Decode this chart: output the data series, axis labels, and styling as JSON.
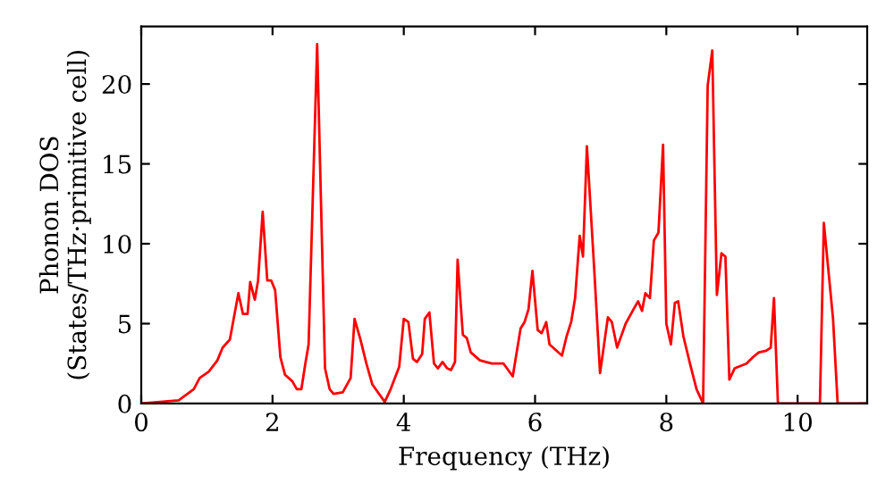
{
  "chart_data": {
    "type": "line",
    "xlabel": "Frequency (THz)",
    "ylabel": "Phonon DOS\n(States/THz·primitive cell)",
    "xlim": [
      0,
      11.06
    ],
    "ylim": [
      0,
      23.6
    ],
    "xticks": [
      0,
      2,
      4,
      6,
      8,
      10
    ],
    "yticks": [
      0,
      5,
      10,
      15,
      20
    ],
    "grid": false,
    "legend": false,
    "marker": "none",
    "line_style": "solid",
    "series": [
      {
        "color": "#ff0000",
        "x": [
          0,
          0.57,
          0.8,
          0.89,
          1.03,
          1.16,
          1.24,
          1.35,
          1.48,
          1.55,
          1.62,
          1.66,
          1.73,
          1.78,
          1.85,
          1.92,
          1.98,
          2.04,
          2.12,
          2.19,
          2.3,
          2.37,
          2.44,
          2.5,
          2.55,
          2.68,
          2.8,
          2.87,
          2.93,
          3.07,
          3.19,
          3.25,
          3.34,
          3.43,
          3.52,
          3.71,
          3.8,
          3.93,
          4.0,
          4.07,
          4.14,
          4.2,
          4.28,
          4.32,
          4.39,
          4.46,
          4.52,
          4.59,
          4.66,
          4.72,
          4.78,
          4.82,
          4.9,
          4.96,
          5.02,
          5.16,
          5.34,
          5.52,
          5.66,
          5.78,
          5.84,
          5.9,
          5.96,
          6.04,
          6.1,
          6.17,
          6.22,
          6.41,
          6.48,
          6.55,
          6.61,
          6.68,
          6.73,
          6.79,
          6.9,
          6.99,
          7.11,
          7.17,
          7.25,
          7.38,
          7.5,
          7.57,
          7.63,
          7.68,
          7.75,
          7.81,
          7.88,
          7.95,
          8.0,
          8.07,
          8.13,
          8.18,
          8.26,
          8.36,
          8.46,
          8.56,
          8.63,
          8.7,
          8.77,
          8.84,
          8.9,
          8.96,
          9.04,
          9.22,
          9.32,
          9.41,
          9.52,
          9.59,
          9.64,
          9.7,
          10.34,
          10.4,
          10.54,
          10.61,
          11.06
        ],
        "values": [
          0,
          0.2,
          0.9,
          1.6,
          2.0,
          2.7,
          3.5,
          4.0,
          6.9,
          5.6,
          5.6,
          7.6,
          6.5,
          7.7,
          12.0,
          7.7,
          7.7,
          7.1,
          2.9,
          1.8,
          1.4,
          0.9,
          0.9,
          2.5,
          3.7,
          22.5,
          2.2,
          0.9,
          0.6,
          0.7,
          1.6,
          5.3,
          4.0,
          2.5,
          1.2,
          0.1,
          0.9,
          2.3,
          5.3,
          5.1,
          2.8,
          2.6,
          3.1,
          5.3,
          5.7,
          2.5,
          2.2,
          2.6,
          2.2,
          2.1,
          2.6,
          9.0,
          4.3,
          4.1,
          3.2,
          2.7,
          2.5,
          2.5,
          1.7,
          4.7,
          5.1,
          5.9,
          8.3,
          4.6,
          4.4,
          5.1,
          3.7,
          3.0,
          4.2,
          5.1,
          6.6,
          10.5,
          9.2,
          16.1,
          8.5,
          1.9,
          5.4,
          5.1,
          3.5,
          5.0,
          5.9,
          6.4,
          5.8,
          6.9,
          6.6,
          10.2,
          10.7,
          16.2,
          5.0,
          3.7,
          6.3,
          6.4,
          4.2,
          2.5,
          0.9,
          0,
          19.9,
          22.1,
          6.8,
          9.4,
          9.2,
          1.5,
          2.2,
          2.5,
          2.9,
          3.2,
          3.3,
          3.5,
          6.6,
          0,
          0,
          11.3,
          5.3,
          0,
          0
        ]
      }
    ]
  }
}
